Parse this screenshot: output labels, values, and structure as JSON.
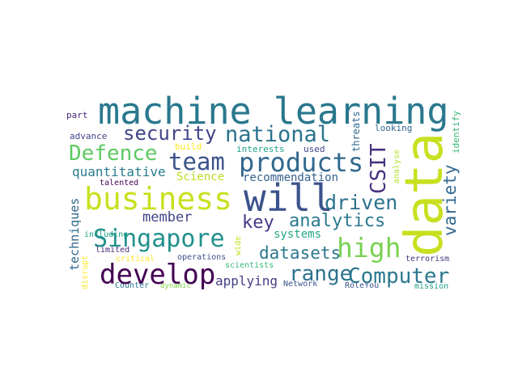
{
  "words": {
    "machine_learning": {
      "text": "machine learning",
      "color": "#2a788e"
    },
    "data": {
      "text": "data",
      "color": "#c8e020"
    },
    "business": {
      "text": "business",
      "color": "#c8e020"
    },
    "will": {
      "text": "will",
      "color": "#3b528b"
    },
    "develop": {
      "text": "develop",
      "color": "#440154"
    },
    "singapore": {
      "text": "Singapore",
      "color": "#21918c"
    },
    "products": {
      "text": "products",
      "color": "#31688e"
    },
    "team": {
      "text": "team",
      "color": "#3b528b"
    },
    "security": {
      "text": "security",
      "color": "#414487"
    },
    "national": {
      "text": "national",
      "color": "#2c728e"
    },
    "defence": {
      "text": "Defence",
      "color": "#5ec962"
    },
    "high": {
      "text": "high",
      "color": "#7ad151"
    },
    "computer": {
      "text": "Computer",
      "color": "#2a788e"
    },
    "range": {
      "text": "range",
      "color": "#2c728e"
    },
    "driven": {
      "text": "driven",
      "color": "#2c728e"
    },
    "analytics": {
      "text": "analytics",
      "color": "#2a788e"
    },
    "csit": {
      "text": "CSIT",
      "color": "#46327e"
    },
    "variety": {
      "text": "variety",
      "color": "#31688e"
    },
    "quantitative": {
      "text": "quantitative",
      "color": "#287c8e"
    },
    "key": {
      "text": "key",
      "color": "#443983"
    },
    "datasets": {
      "text": "datasets",
      "color": "#2a788e"
    },
    "member": {
      "text": "member",
      "color": "#414487"
    },
    "science": {
      "text": "Science",
      "color": "#bddf26"
    },
    "recommendation": {
      "text": "recommendation",
      "color": "#355f8d"
    },
    "applying": {
      "text": "applying",
      "color": "#433e85"
    },
    "techniques": {
      "text": "techniques",
      "color": "#31688e"
    },
    "systems": {
      "text": "systems",
      "color": "#22a884"
    },
    "part": {
      "text": "part",
      "color": "#482878"
    },
    "advance": {
      "text": "advance",
      "color": "#414487"
    },
    "talented": {
      "text": "talented",
      "color": "#440154"
    },
    "build": {
      "text": "build",
      "color": "#fde725"
    },
    "interests": {
      "text": "interests",
      "color": "#1fa187"
    },
    "used": {
      "text": "used",
      "color": "#414487"
    },
    "threats": {
      "text": "threats",
      "color": "#31688e"
    },
    "looking": {
      "text": "looking",
      "color": "#33638d"
    },
    "identify": {
      "text": "identify",
      "color": "#35b779"
    },
    "analyse": {
      "text": "analyse",
      "color": "#b5de2b"
    },
    "including": {
      "text": "including",
      "color": "#1fa187"
    },
    "limited": {
      "text": "limited",
      "color": "#482878"
    },
    "critical": {
      "text": "critical",
      "color": "#fde725"
    },
    "disrupt": {
      "text": "disrupt",
      "color": "#fde725"
    },
    "operations": {
      "text": "operations",
      "color": "#3b528b"
    },
    "wide": {
      "text": "wide",
      "color": "#c2df23"
    },
    "scientists": {
      "text": "scientists",
      "color": "#35b779"
    },
    "terrorism": {
      "text": "terrorism",
      "color": "#453781"
    },
    "counter": {
      "text": "Counter",
      "color": "#2a788e"
    },
    "dynamic": {
      "text": "dynamic",
      "color": "#84d44b"
    },
    "network": {
      "text": "Network",
      "color": "#3b528b"
    },
    "roleyou": {
      "text": "RoleYou",
      "color": "#3b528b"
    },
    "mission": {
      "text": "mission",
      "color": "#1f9e89"
    }
  }
}
